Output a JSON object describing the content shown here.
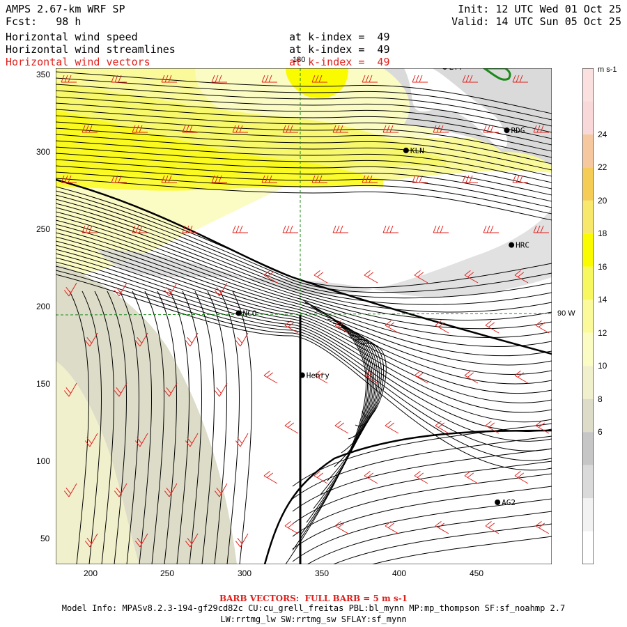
{
  "header": {
    "model": "AMPS 2.67-km WRF SP",
    "fcst": "Fcst:   98 h",
    "init": "Init: 12 UTC Wed 01 Oct 25",
    "valid": "Valid: 14 UTC Sun 05 Oct 25",
    "fields": [
      {
        "label": "Horizontal wind speed",
        "level": "at k-index =  49"
      },
      {
        "label": "Horizontal wind streamlines",
        "level": "at k-index =  49"
      },
      {
        "label": "Horizontal wind vectors",
        "level": "at k-index =  49"
      }
    ]
  },
  "map": {
    "x_ticks": [
      "200",
      "250",
      "300",
      "350",
      "400",
      "450"
    ],
    "y_ticks": [
      "350",
      "300",
      "250",
      "200",
      "150",
      "100",
      "50"
    ],
    "meridian_label": "180",
    "lon_label": "90 W",
    "stations": [
      {
        "name": "KLN",
        "x": 401,
        "y": 300
      },
      {
        "name": "RDG",
        "x": 466,
        "y": 313
      },
      {
        "name": "HRC",
        "x": 469,
        "y": 239
      },
      {
        "name": "NCO",
        "x": 293,
        "y": 195
      },
      {
        "name": "Henry",
        "x": 334,
        "y": 155
      },
      {
        "name": "AG2",
        "x": 460,
        "y": 73
      },
      {
        "name": "LYT",
        "x": 426,
        "y": 354
      }
    ]
  },
  "colorbar": {
    "unit": "m s-1",
    "labels": [
      "24",
      "22",
      "20",
      "18",
      "16",
      "14",
      "12",
      "10",
      "8",
      "6"
    ],
    "colors": [
      "#ffffff",
      "#f2f2f2",
      "#dadada",
      "#c6c6c6",
      "#dcdcc8",
      "#f0f0cc",
      "#fbfbc4",
      "#fafa9a",
      "#f7f760",
      "#fbfb00",
      "#f7e86b",
      "#f5cc55",
      "#f5c8a0",
      "#f8d8d8",
      "#fbe0e0"
    ]
  },
  "footer": {
    "barb": "BARB VECTORS:  FULL BARB = 5 m s-1",
    "model_info": "Model Info: MPASv8.2.3-194-gf29cd82c CU:cu_grell_freitas PBL:bl_mynn MP:mp_thompson SF:sf_noahmp 2.7",
    "physics": "LW:rrtmg_lw SW:rrtmg_sw SFLAY:sf_mynn"
  }
}
